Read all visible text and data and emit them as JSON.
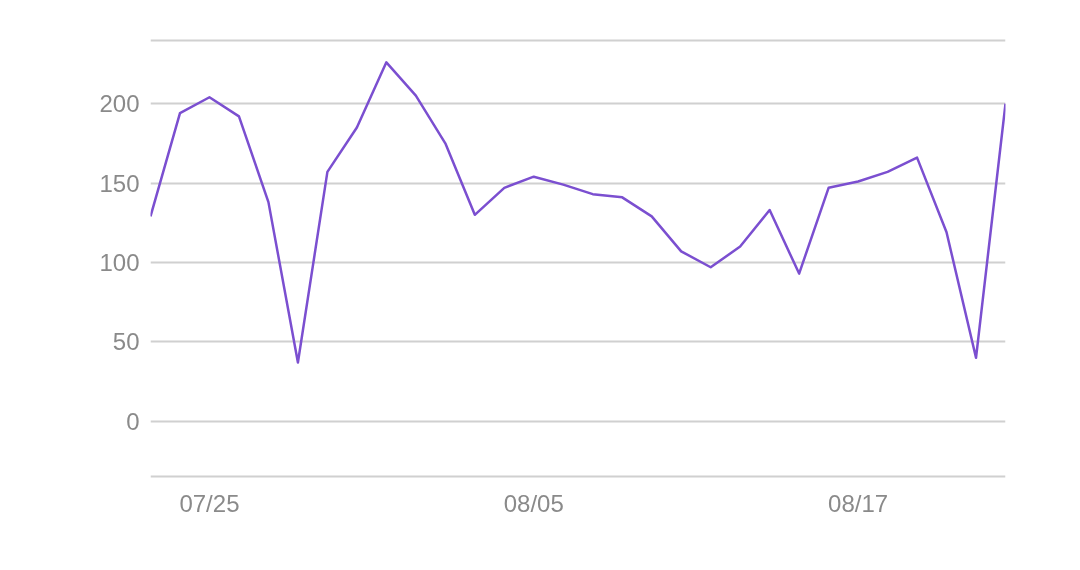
{
  "chart_data": {
    "type": "line",
    "categories": [
      null,
      null,
      "07/25",
      null,
      null,
      null,
      null,
      null,
      null,
      null,
      null,
      null,
      null,
      "08/05",
      null,
      null,
      null,
      null,
      null,
      null,
      null,
      null,
      null,
      null,
      "08/17",
      null,
      null,
      null,
      null,
      null
    ],
    "series": [
      {
        "color": "#7b4fd0",
        "values": [
          129,
          194,
          204,
          192,
          138,
          37,
          157,
          185,
          226,
          205,
          175,
          130,
          147,
          154,
          149,
          143,
          141,
          129,
          107,
          97,
          110,
          133,
          93,
          147,
          151,
          157,
          166,
          119,
          40,
          200
        ]
      }
    ],
    "ylim": [
      -36,
      241
    ],
    "yticks": [
      {
        "value": -35,
        "label": null
      },
      0,
      50,
      100,
      150,
      200,
      {
        "value": 240,
        "label": null
      }
    ],
    "grid": "y",
    "marker": "none",
    "line_style": "solid"
  }
}
